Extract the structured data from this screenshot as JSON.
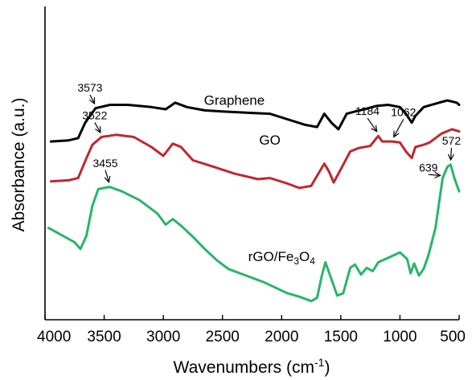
{
  "chart_data": {
    "type": "line",
    "xlabel": "Wavenumbers (cm",
    "xlabel_sup": "-1",
    "xlabel_tail": ")",
    "ylabel": "Absorbance (a.u.)",
    "xlim": [
      4000,
      500
    ],
    "x_reversed": true,
    "x_ticks": [
      4000,
      3500,
      3000,
      2500,
      2000,
      1500,
      1000,
      500
    ],
    "y_ticks_shown": false,
    "grid": false,
    "series": [
      {
        "label_parts": [
          {
            "t": "Graphene"
          }
        ],
        "color": "#000000",
        "label_at": [
          2400,
          46
        ],
        "points": [
          [
            3950,
            13
          ],
          [
            3800,
            14
          ],
          [
            3720,
            16
          ],
          [
            3660,
            30
          ],
          [
            3573,
            43
          ],
          [
            3450,
            46
          ],
          [
            3300,
            46
          ],
          [
            3100,
            44
          ],
          [
            2980,
            42
          ],
          [
            2900,
            48
          ],
          [
            2800,
            44
          ],
          [
            2650,
            41
          ],
          [
            2500,
            40
          ],
          [
            2300,
            39
          ],
          [
            2100,
            38
          ],
          [
            1950,
            33
          ],
          [
            1800,
            28
          ],
          [
            1700,
            26
          ],
          [
            1640,
            38
          ],
          [
            1580,
            30
          ],
          [
            1520,
            24
          ],
          [
            1450,
            38
          ],
          [
            1380,
            40
          ],
          [
            1300,
            42
          ],
          [
            1200,
            45
          ],
          [
            1100,
            46
          ],
          [
            1000,
            44
          ],
          [
            950,
            38
          ],
          [
            900,
            30
          ],
          [
            870,
            36
          ],
          [
            800,
            44
          ],
          [
            700,
            47
          ],
          [
            600,
            50
          ],
          [
            520,
            48
          ],
          [
            500,
            46
          ]
        ]
      },
      {
        "label_parts": [
          {
            "t": "GO"
          }
        ],
        "color": "#c0272d",
        "label_at": [
          2100,
          10
        ],
        "points": [
          [
            3950,
            -23
          ],
          [
            3800,
            -22
          ],
          [
            3720,
            -20
          ],
          [
            3650,
            -2
          ],
          [
            3600,
            10
          ],
          [
            3522,
            17
          ],
          [
            3400,
            19
          ],
          [
            3250,
            17
          ],
          [
            3100,
            8
          ],
          [
            3000,
            0
          ],
          [
            2920,
            11
          ],
          [
            2850,
            8
          ],
          [
            2750,
            -4
          ],
          [
            2600,
            -9
          ],
          [
            2400,
            -16
          ],
          [
            2200,
            -21
          ],
          [
            2100,
            -20
          ],
          [
            1950,
            -25
          ],
          [
            1850,
            -29
          ],
          [
            1750,
            -27
          ],
          [
            1700,
            -18
          ],
          [
            1640,
            -7
          ],
          [
            1600,
            -14
          ],
          [
            1560,
            -24
          ],
          [
            1500,
            -12
          ],
          [
            1420,
            4
          ],
          [
            1350,
            7
          ],
          [
            1250,
            9
          ],
          [
            1184,
            18
          ],
          [
            1150,
            13
          ],
          [
            1062,
            13
          ],
          [
            1000,
            12
          ],
          [
            950,
            4
          ],
          [
            900,
            -2
          ],
          [
            870,
            8
          ],
          [
            800,
            10
          ],
          [
            750,
            12
          ],
          [
            650,
            20
          ],
          [
            560,
            24
          ],
          [
            500,
            22
          ]
        ]
      },
      {
        "label_parts": [
          {
            "t": "rGO/Fe"
          },
          {
            "t": "3",
            "sub": true
          },
          {
            "t": "O"
          },
          {
            "t": "4",
            "sub": true
          }
        ],
        "color": "#2ab56a",
        "label_at": [
          2000,
          -95
        ],
        "points": [
          [
            3970,
            -65
          ],
          [
            3850,
            -72
          ],
          [
            3750,
            -78
          ],
          [
            3700,
            -84
          ],
          [
            3650,
            -72
          ],
          [
            3600,
            -45
          ],
          [
            3550,
            -30
          ],
          [
            3455,
            -28
          ],
          [
            3350,
            -32
          ],
          [
            3200,
            -40
          ],
          [
            3050,
            -52
          ],
          [
            2980,
            -62
          ],
          [
            2920,
            -57
          ],
          [
            2850,
            -63
          ],
          [
            2750,
            -73
          ],
          [
            2650,
            -84
          ],
          [
            2550,
            -94
          ],
          [
            2450,
            -102
          ],
          [
            2300,
            -108
          ],
          [
            2150,
            -114
          ],
          [
            2050,
            -119
          ],
          [
            1950,
            -124
          ],
          [
            1850,
            -127
          ],
          [
            1750,
            -131
          ],
          [
            1700,
            -128
          ],
          [
            1660,
            -108
          ],
          [
            1630,
            -96
          ],
          [
            1590,
            -108
          ],
          [
            1530,
            -126
          ],
          [
            1480,
            -124
          ],
          [
            1420,
            -101
          ],
          [
            1380,
            -98
          ],
          [
            1330,
            -107
          ],
          [
            1280,
            -101
          ],
          [
            1230,
            -104
          ],
          [
            1184,
            -96
          ],
          [
            1100,
            -92
          ],
          [
            1000,
            -87
          ],
          [
            940,
            -93
          ],
          [
            910,
            -106
          ],
          [
            880,
            -97
          ],
          [
            840,
            -108
          ],
          [
            800,
            -102
          ],
          [
            760,
            -90
          ],
          [
            700,
            -65
          ],
          [
            639,
            -20
          ],
          [
            600,
            -10
          ],
          [
            572,
            -8
          ],
          [
            540,
            -20
          ],
          [
            500,
            -32
          ]
        ]
      }
    ],
    "annotations": [
      {
        "label": "3573",
        "x": 3573,
        "y": 43,
        "text_x": 3620,
        "text_y": 58
      },
      {
        "label": "3522",
        "x": 3522,
        "y": 17,
        "text_x": 3580,
        "text_y": 33
      },
      {
        "label": "1184",
        "x": 1184,
        "y": 18,
        "text_x": 1275,
        "text_y": 37
      },
      {
        "label": "1062",
        "x": 1062,
        "y": 13,
        "text_x": 970,
        "text_y": 36
      },
      {
        "label": "3455",
        "x": 3455,
        "y": -28,
        "text_x": 3490,
        "text_y": -10
      },
      {
        "label": "572",
        "x": 572,
        "y": -8,
        "text_x": 565,
        "text_y": 10
      },
      {
        "label": "639",
        "x": 639,
        "y": -20,
        "text_x": 760,
        "text_y": -14
      }
    ]
  }
}
